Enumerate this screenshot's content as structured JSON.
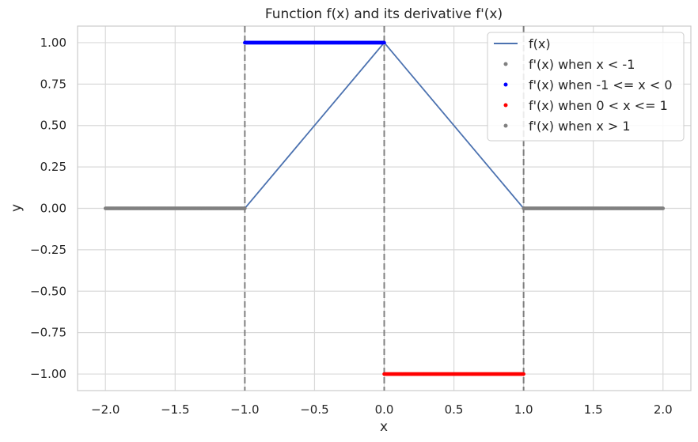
{
  "chart_data": {
    "type": "line",
    "title": "Function f(x) and its derivative f'(x)",
    "xlabel": "x",
    "ylabel": "y",
    "xlim": [
      -2.2,
      2.2
    ],
    "ylim": [
      -1.1,
      1.1
    ],
    "x_ticks": [
      -2.0,
      -1.5,
      -1.0,
      -0.5,
      0.0,
      0.5,
      1.0,
      1.5,
      2.0
    ],
    "x_tick_labels": [
      "−2.0",
      "−1.5",
      "−1.0",
      "−0.5",
      "0.0",
      "0.5",
      "1.0",
      "1.5",
      "2.0"
    ],
    "y_ticks": [
      1.0,
      0.75,
      0.5,
      0.25,
      0.0,
      -0.25,
      -0.5,
      -0.75,
      -1.0
    ],
    "y_tick_labels": [
      "1.00",
      "0.75",
      "0.50",
      "0.25",
      "0.00",
      "−0.25",
      "−0.50",
      "−0.75",
      "−1.00"
    ],
    "grid": true,
    "legend_position": "top-right",
    "vertical_lines": {
      "x": [
        -1,
        0,
        1
      ],
      "style": "dashed",
      "color": "#808080"
    },
    "series": [
      {
        "name": "f(x)",
        "kind": "line",
        "color": "#4c72b0",
        "x": [
          -2.0,
          -1.0,
          0.0,
          1.0,
          2.0
        ],
        "y": [
          0.0,
          0.0,
          1.0,
          0.0,
          0.0
        ]
      },
      {
        "name": "f'(x) when x < -1",
        "kind": "scatter",
        "color": "#808080",
        "x_range": [
          -2.0,
          -1.0
        ],
        "y": 0.0
      },
      {
        "name": "f'(x) when -1 <= x < 0",
        "kind": "scatter",
        "color": "#0000ff",
        "x_range": [
          -1.0,
          0.0
        ],
        "y": 1.0
      },
      {
        "name": "f'(x) when 0 < x <= 1",
        "kind": "scatter",
        "color": "#ff0000",
        "x_range": [
          0.0,
          1.0
        ],
        "y": -1.0
      },
      {
        "name": "f'(x) when x > 1",
        "kind": "scatter",
        "color": "#808080",
        "x_range": [
          1.0,
          2.0
        ],
        "y": 0.0
      }
    ]
  }
}
